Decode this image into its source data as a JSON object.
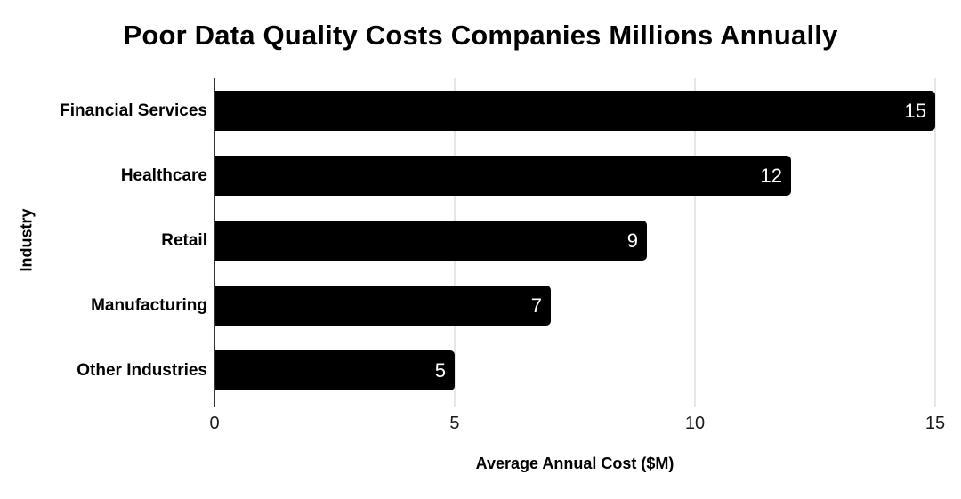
{
  "chart_data": {
    "type": "bar",
    "orientation": "horizontal",
    "title": "Poor Data Quality Costs Companies Millions Annually",
    "categories": [
      "Financial Services",
      "Healthcare",
      "Retail",
      "Manufacturing",
      "Other Industries"
    ],
    "values": [
      15,
      12,
      9,
      7,
      5
    ],
    "xlabel": "Average Annual Cost ($M)",
    "ylabel": "Industry",
    "xlim": [
      0,
      15
    ],
    "xticks": [
      0,
      5,
      10,
      15
    ],
    "grid": "vertical-gridlines-at-ticks",
    "legend": "none",
    "colors": {
      "bar": "#000000",
      "value_label": "#ffffff",
      "gridline": "#cccccc",
      "axis_line": "#333333",
      "text": "#000000"
    }
  }
}
